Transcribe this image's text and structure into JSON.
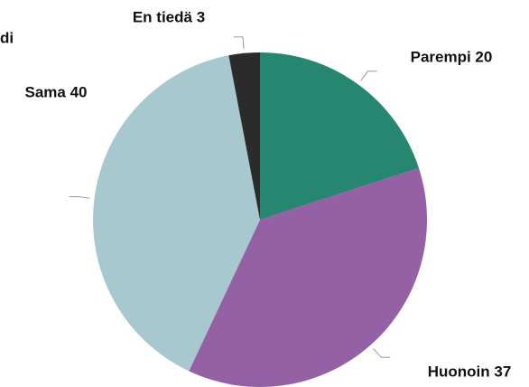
{
  "chart_data": {
    "type": "pie",
    "title": "di",
    "categories": [
      "Parempi",
      "Huonoin",
      "Sama",
      "En tiedä"
    ],
    "values": [
      20,
      37,
      40,
      3
    ],
    "value_labels": [
      "Parempi 20",
      "Huonoin 37",
      "Sama 40",
      "En tiedä 3"
    ],
    "colors": [
      "#26866f",
      "#9462a4",
      "#a8c8d0",
      "#2b2b2b"
    ]
  }
}
